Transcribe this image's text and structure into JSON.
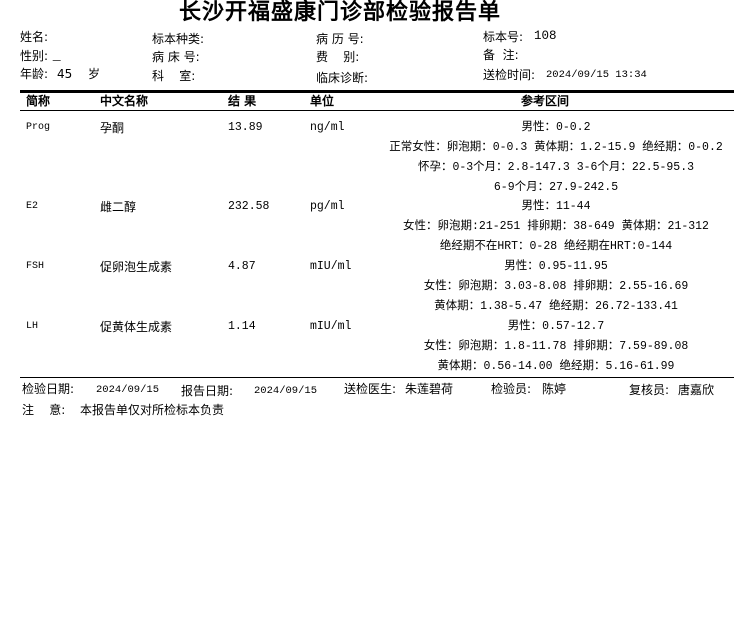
{
  "report": {
    "title": "长沙开福盛康门诊部检验报告单",
    "fields": {
      "name_label": "姓名:",
      "name": "",
      "gender_label": "性别:",
      "age_label": "年龄:",
      "age": "45",
      "age_unit": "岁",
      "specimen_type_label": "标本种类:",
      "bed_label": "病 床 号:",
      "dept_label": "科    室:",
      "record_label": "病 历 号:",
      "fee_label": "费    别:",
      "diagnosis_label": "临床诊断:",
      "specimen_no_label": "标本号:",
      "specimen_no": "108",
      "remark_label": "备  注:",
      "sent_time_label": "送检时间:",
      "sent_time": "2024/09/15 13:34"
    },
    "columns": [
      "简称",
      "中文名称",
      "结 果",
      "单位",
      "参考区间"
    ],
    "rows": [
      {
        "abbr": "Prog",
        "name": "孕酮",
        "result": "13.89",
        "unit": "ng/ml",
        "ref": [
          "男性：0-0.2",
          "正常女性：卵泡期：0-0.3 黄体期：1.2-15.9  绝经期：0-0.2",
          "怀孕：0-3个月：2.8-147.3    3-6个月：22.5-95.3",
          "6-9个月：27.9-242.5"
        ]
      },
      {
        "abbr": "E2",
        "name": "雌二醇",
        "result": "232.58",
        "unit": "pg/ml",
        "ref": [
          "男性：11-44",
          "女性：卵泡期:21-251   排卵期：38-649  黄体期：21-312",
          "绝经期不在HRT：0-28  绝经期在HRT:0-144"
        ]
      },
      {
        "abbr": "FSH",
        "name": "促卵泡生成素",
        "result": "4.87",
        "unit": "mIU/ml",
        "ref": [
          "男性：0.95-11.95",
          "女性：卵泡期：3.03-8.08  排卵期：2.55-16.69",
          "黄体期：1.38-5.47 绝经期：26.72-133.41"
        ]
      },
      {
        "abbr": "LH",
        "name": "促黄体生成素",
        "result": "1.14",
        "unit": "mIU/ml",
        "ref": [
          "男性：0.57-12.7",
          "女性：卵泡期：1.8-11.78 排卵期：7.59-89.08",
          "黄体期：0.56-14.00  绝经期：5.16-61.99"
        ]
      }
    ],
    "footer": {
      "test_date_label": "检验日期:",
      "test_date": "2024/09/15",
      "report_date_label": "报告日期:",
      "report_date": "2024/09/15",
      "doctor_label": "送检医生:",
      "doctor": "朱莲碧荷",
      "tester_label": "检验员:",
      "tester": "陈婷",
      "reviewer_label": "复核员:",
      "reviewer": "唐嘉欣",
      "note_label": "注    意:",
      "note": "本报告单仅对所检标本负责"
    }
  }
}
